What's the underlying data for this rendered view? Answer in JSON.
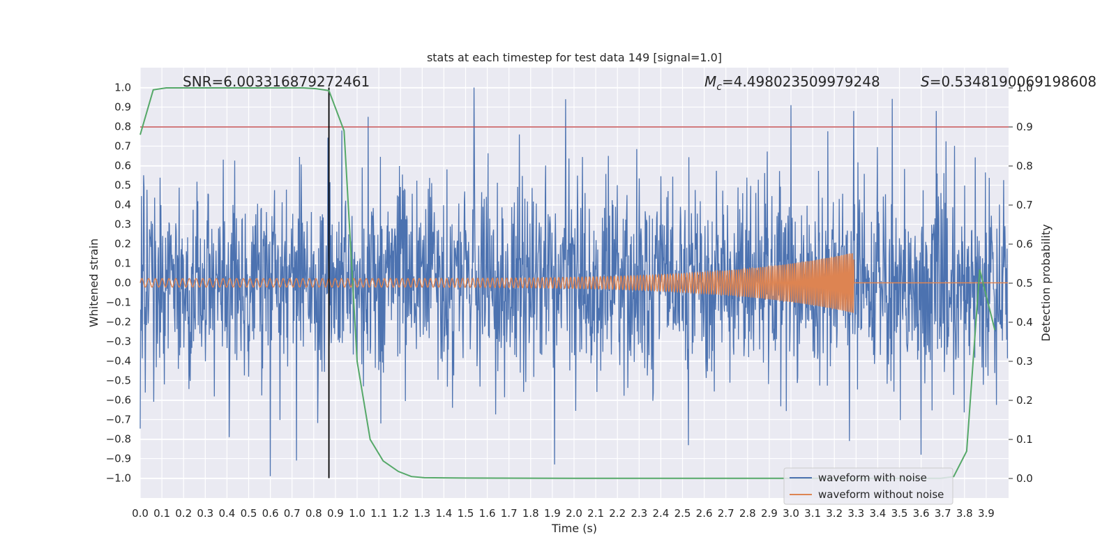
{
  "chart_data": {
    "type": "line",
    "title": "stats at each timestep for test data 149 [signal=1.0]",
    "xlabel": "Time (s)",
    "ylabel": "Whitened strain",
    "y2label": "Detection probability",
    "xlim": [
      0.0,
      4.0
    ],
    "ylim": [
      -1.1,
      1.1
    ],
    "y2lim": [
      -0.05,
      1.0
    ],
    "x_ticks": [
      "0.0",
      "0.1",
      "0.2",
      "0.3",
      "0.4",
      "0.5",
      "0.6",
      "0.7",
      "0.8",
      "0.9",
      "1.0",
      "1.1",
      "1.2",
      "1.3",
      "1.4",
      "1.5",
      "1.6",
      "1.7",
      "1.8",
      "1.9",
      "2.0",
      "2.1",
      "2.2",
      "2.3",
      "2.4",
      "2.5",
      "2.6",
      "2.7",
      "2.8",
      "2.9",
      "3.0",
      "3.1",
      "3.2",
      "3.3",
      "3.4",
      "3.5",
      "3.6",
      "3.7",
      "3.8",
      "3.9"
    ],
    "y_ticks": [
      "−1.0",
      "−0.9",
      "−0.8",
      "−0.7",
      "−0.6",
      "−0.5",
      "−0.4",
      "−0.3",
      "−0.2",
      "−0.1",
      "0.0",
      "0.1",
      "0.2",
      "0.3",
      "0.4",
      "0.5",
      "0.6",
      "0.7",
      "0.8",
      "0.9",
      "1.0"
    ],
    "y2_ticks": [
      "0.0",
      "0.1",
      "0.2",
      "0.3",
      "0.4",
      "0.5",
      "0.6",
      "0.7",
      "0.8",
      "0.9",
      "1.0"
    ],
    "annotations": {
      "snr": "SNR=6.003316879272461",
      "mc_symbol": "M",
      "mc_sub": "c",
      "mc_value": "=4.498023509979248",
      "s_symbol": "S",
      "s_value": "=0.5348190069198608"
    },
    "threshold": {
      "axis": "y2",
      "value": 0.9,
      "color": "#c44e52"
    },
    "trigger_time": 0.87,
    "noisy_waveform": {
      "name": "waveform with noise",
      "color": "#4c72b0",
      "samples": 2048,
      "noise_std": 0.25,
      "peaks": [
        {
          "t": 1.54,
          "v": 1.0
        },
        {
          "t": 1.05,
          "v": 0.85
        },
        {
          "t": 1.96,
          "v": 0.94
        },
        {
          "t": 3.0,
          "v": 0.91
        },
        {
          "t": 3.29,
          "v": 0.88
        },
        {
          "t": 3.67,
          "v": 0.88
        },
        {
          "t": 0.93,
          "v": 0.78
        },
        {
          "t": 0.6,
          "v": -0.99
        },
        {
          "t": 1.91,
          "v": -0.93
        },
        {
          "t": 0.72,
          "v": -0.91
        },
        {
          "t": 3.6,
          "v": -0.88
        },
        {
          "t": 0.41,
          "v": -0.79
        },
        {
          "t": 3.27,
          "v": -0.81
        },
        {
          "t": 1.11,
          "v": -0.72
        }
      ]
    },
    "clean_waveform": {
      "name": "waveform without noise",
      "color": "#dd8452",
      "start_amplitude": 0.022,
      "end_amplitude": 0.155,
      "start_freq": 32,
      "end_freq": 140,
      "t_end": 3.29
    },
    "detection_probability": {
      "color": "#55a868",
      "x": [
        0.0,
        0.06,
        0.12,
        0.19,
        0.25,
        0.31,
        0.37,
        0.44,
        0.5,
        0.56,
        0.62,
        0.69,
        0.75,
        0.81,
        0.87,
        0.94,
        1.0,
        1.06,
        1.12,
        1.19,
        1.25,
        1.31,
        1.5,
        2.0,
        2.5,
        3.0,
        3.5,
        3.69,
        3.75,
        3.81,
        3.87,
        3.94
      ],
      "y": [
        0.88,
        0.995,
        1.0,
        1.0,
        1.0,
        1.0,
        1.0,
        1.0,
        1.0,
        1.0,
        1.0,
        1.0,
        1.0,
        0.998,
        0.993,
        0.89,
        0.3,
        0.1,
        0.045,
        0.018,
        0.005,
        0.002,
        0.001,
        0.0005,
        0.0005,
        0.0005,
        0.0005,
        0.0005,
        0.005,
        0.07,
        0.535,
        0.38
      ]
    },
    "legend": {
      "position": "lower-right",
      "entries": [
        "waveform with noise",
        "waveform without noise"
      ]
    }
  }
}
